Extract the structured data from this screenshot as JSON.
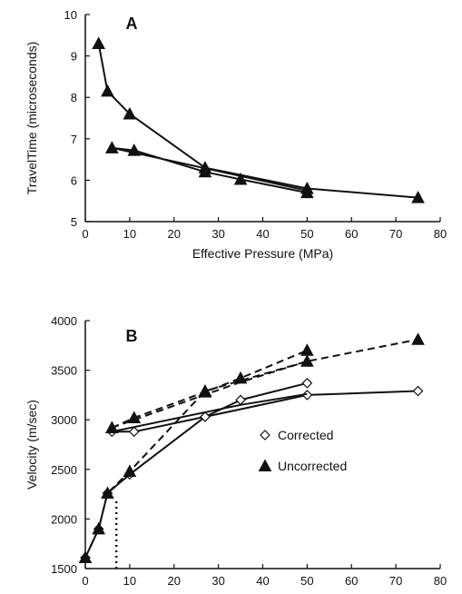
{
  "chart_data": [
    {
      "type": "line",
      "panel_label": "A",
      "xlabel": "Effective Pressure (MPa)",
      "ylabel": "TravelTime (microseconds)",
      "xlim": [
        0,
        80
      ],
      "ylim": [
        5,
        10
      ],
      "xticks": [
        "0",
        "10",
        "20",
        "30",
        "40",
        "50",
        "60",
        "70",
        "80"
      ],
      "yticks": [
        "5",
        "6",
        "7",
        "8",
        "9",
        "10"
      ],
      "grid": false,
      "series": [
        {
          "style": "solid",
          "marker": "filled-triangle",
          "x": [
            3,
            5,
            10,
            27,
            50,
            75
          ],
          "y": [
            9.3,
            8.15,
            7.6,
            6.3,
            5.8,
            5.58
          ]
        },
        {
          "style": "solid",
          "marker": "filled-triangle",
          "x": [
            6,
            11,
            27,
            35,
            50
          ],
          "y": [
            6.78,
            6.72,
            6.2,
            6.02,
            5.7
          ]
        },
        {
          "style": "solid",
          "marker": "none",
          "x": [
            6,
            35,
            50
          ],
          "y": [
            6.78,
            6.1,
            5.75
          ]
        }
      ]
    },
    {
      "type": "line",
      "panel_label": "B",
      "xlabel": "Effective Pressure (MPa)",
      "ylabel": "Velocity (m/sec)",
      "xlim": [
        0,
        80
      ],
      "ylim": [
        1500,
        4000
      ],
      "xticks": [
        "0",
        "10",
        "20",
        "30",
        "40",
        "50",
        "60",
        "70",
        "80"
      ],
      "yticks": [
        "1500",
        "2000",
        "2500",
        "3000",
        "3500",
        "4000"
      ],
      "grid": false,
      "legend": {
        "position": "center-right",
        "entries": [
          {
            "label": "Corrected",
            "marker": "open-diamond"
          },
          {
            "label": "Uncorrected",
            "marker": "filled-triangle"
          }
        ]
      },
      "series": [
        {
          "style": "solid",
          "marker": "open-diamond",
          "x": [
            0,
            3,
            5,
            10,
            27,
            50,
            75
          ],
          "y": [
            1610,
            1900,
            2260,
            2450,
            3030,
            3250,
            3290
          ]
        },
        {
          "style": "dashed",
          "marker": "filled-triangle",
          "x": [
            0,
            3,
            5,
            10,
            27,
            50,
            75
          ],
          "y": [
            1610,
            1900,
            2260,
            2480,
            3290,
            3590,
            3810
          ]
        },
        {
          "style": "solid",
          "marker": "open-diamond",
          "x": [
            6,
            11,
            27,
            35,
            50
          ],
          "y": [
            2880,
            2880,
            3030,
            3200,
            3370
          ]
        },
        {
          "style": "dashed",
          "marker": "filled-triangle",
          "x": [
            6,
            11,
            27,
            35,
            50
          ],
          "y": [
            2920,
            3020,
            3280,
            3420,
            3700
          ]
        },
        {
          "style": "solid",
          "marker": "none",
          "x": [
            6,
            35,
            50
          ],
          "y": [
            2880,
            3150,
            3260
          ]
        },
        {
          "style": "dashed",
          "marker": "none",
          "x": [
            6,
            35,
            50
          ],
          "y": [
            2920,
            3380,
            3590
          ]
        },
        {
          "style": "dotted",
          "marker": "none",
          "x": [
            7,
            7
          ],
          "y": [
            1500,
            2200
          ]
        }
      ]
    }
  ]
}
